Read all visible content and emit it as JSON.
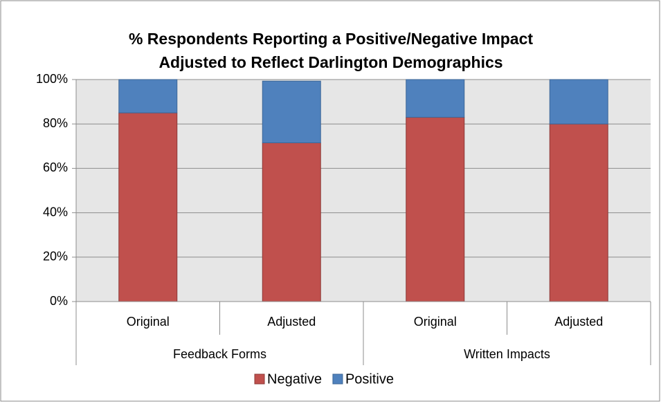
{
  "chart_data": {
    "type": "stacked_bar",
    "title": [
      "% Respondents Reporting a Positive/Negative Impact",
      "Adjusted to Reflect Darlington Demographics"
    ],
    "categories": [
      "Original",
      "Adjusted",
      "Original",
      "Adjusted"
    ],
    "groups": [
      "Feedback Forms",
      "Written Impacts"
    ],
    "series": [
      {
        "name": "Negative",
        "color": "#c0504d",
        "values": [
          85,
          71.5,
          83,
          80
        ]
      },
      {
        "name": "Positive",
        "color": "#4f81bd",
        "values": [
          15,
          27.8,
          17,
          20
        ]
      }
    ],
    "ylim": [
      0,
      100
    ],
    "yticks": [
      {
        "value": 0,
        "label": "0%"
      },
      {
        "value": 20,
        "label": "20%"
      },
      {
        "value": 40,
        "label": "40%"
      },
      {
        "value": 60,
        "label": "60%"
      },
      {
        "value": 80,
        "label": "80%"
      },
      {
        "value": 100,
        "label": "100%"
      }
    ],
    "grid": true,
    "legend": "bottom"
  }
}
